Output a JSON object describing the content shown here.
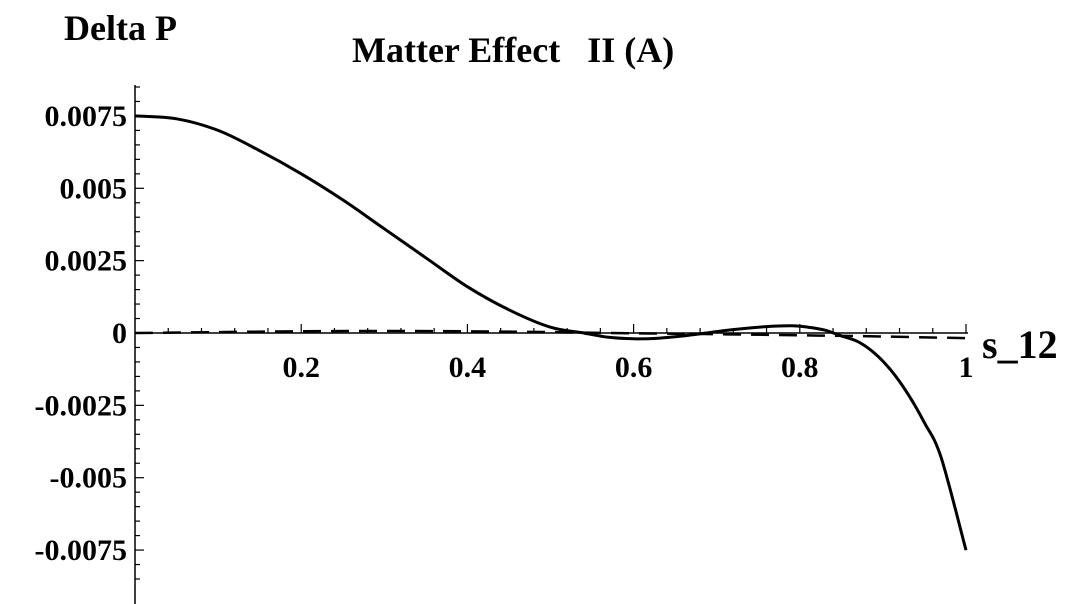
{
  "chart_data": {
    "type": "line",
    "title": "Matter Effect   II (A)",
    "ylabel": "Delta P",
    "xlabel": "s_12",
    "xlim": [
      0,
      1
    ],
    "ylim": [
      -0.0085,
      0.0085
    ],
    "grid": false,
    "x_ticks": [
      {
        "value": 0.2,
        "label": "0.2"
      },
      {
        "value": 0.4,
        "label": "0.4"
      },
      {
        "value": 0.6,
        "label": "0.6"
      },
      {
        "value": 0.8,
        "label": "0.8"
      },
      {
        "value": 1.0,
        "label": "1"
      }
    ],
    "y_ticks": [
      {
        "value": 0.0075,
        "label": "0.0075"
      },
      {
        "value": 0.005,
        "label": "0.005"
      },
      {
        "value": 0.0025,
        "label": "0.0025"
      },
      {
        "value": 0,
        "label": "0"
      },
      {
        "value": -0.0025,
        "label": "-0.0025"
      },
      {
        "value": -0.005,
        "label": "-0.005"
      },
      {
        "value": -0.0075,
        "label": "-0.0075"
      }
    ],
    "series": [
      {
        "style": "solid",
        "x": [
          0.0,
          0.05,
          0.1,
          0.15,
          0.2,
          0.25,
          0.3,
          0.35,
          0.4,
          0.45,
          0.5,
          0.54,
          0.57,
          0.6,
          0.63,
          0.66,
          0.7,
          0.73,
          0.76,
          0.79,
          0.81,
          0.83,
          0.85,
          0.87,
          0.89,
          0.91,
          0.93,
          0.95,
          0.97,
          1.0
        ],
        "y": [
          0.0075,
          0.0074,
          0.007,
          0.0063,
          0.0055,
          0.0046,
          0.0036,
          0.0026,
          0.0016,
          0.0008,
          0.0002,
          0.0,
          -0.00015,
          -0.0002,
          -0.00018,
          -0.0001,
          5e-05,
          0.00015,
          0.00022,
          0.00025,
          0.0002,
          0.0001,
          -0.0001,
          -0.0003,
          -0.0007,
          -0.0013,
          -0.0021,
          -0.0031,
          -0.0043,
          -0.0075
        ]
      },
      {
        "style": "dashed",
        "x": [
          0.0,
          0.1,
          0.2,
          0.3,
          0.4,
          0.5,
          0.6,
          0.7,
          0.8,
          0.9,
          1.0
        ],
        "y": [
          0.0,
          3e-05,
          6e-05,
          7e-05,
          6e-05,
          3e-05,
          -1e-05,
          -4e-05,
          -8e-05,
          -0.00012,
          -0.00018
        ]
      }
    ]
  }
}
